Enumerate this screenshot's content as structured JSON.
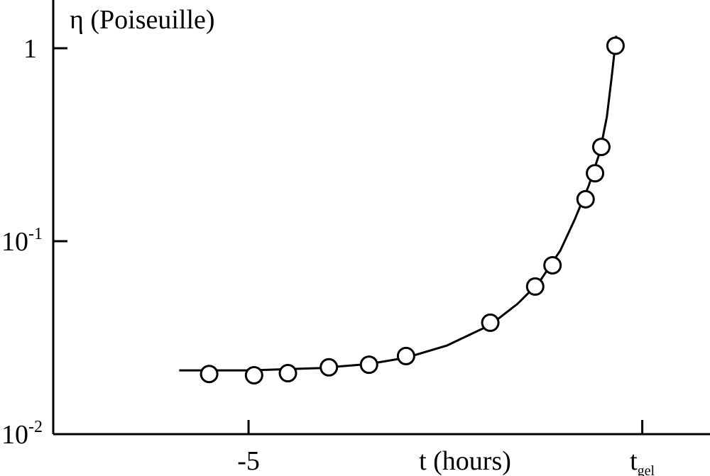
{
  "chart_data": {
    "type": "scatter",
    "y_label": "η (Poiseuille)",
    "x_label": "t (hours)",
    "xlim": [
      -7.48,
      0.86
    ],
    "ylim": [
      0.01,
      1.778
    ],
    "y_scale": "log",
    "xticks": [
      -5,
      {
        "value": 0,
        "label": "t",
        "sub": "gel"
      }
    ],
    "yticks": [
      {
        "value": 0.01,
        "label": "10",
        "sup": "-2"
      },
      {
        "value": 0.1,
        "label": "10",
        "sup": "-1"
      },
      1
    ],
    "series": [
      {
        "type": "line",
        "color": "#000000",
        "x": [
          -5.88,
          -5.0,
          -4.1,
          -3.47,
          -3.0,
          -2.48,
          -1.93,
          -1.58,
          -1.31,
          -1.04,
          -0.86,
          -0.68,
          -0.54,
          -0.45,
          -0.39,
          -0.33
        ],
        "values": [
          0.0214,
          0.0214,
          0.022,
          0.0231,
          0.0249,
          0.0288,
          0.0368,
          0.0475,
          0.0612,
          0.0896,
          0.129,
          0.194,
          0.288,
          0.44,
          0.701,
          1.16
        ]
      },
      {
        "type": "scatter",
        "color": "#000000",
        "x": [
          -5.5,
          -4.93,
          -4.5,
          -3.98,
          -3.47,
          -3.0,
          -1.93,
          -1.36,
          -1.14,
          -0.72,
          -0.6,
          -0.52,
          -0.34
        ],
        "values": [
          0.0205,
          0.0202,
          0.0207,
          0.0222,
          0.0229,
          0.0254,
          0.0378,
          0.0582,
          0.075,
          0.165,
          0.225,
          0.308,
          1.03
        ]
      }
    ]
  }
}
